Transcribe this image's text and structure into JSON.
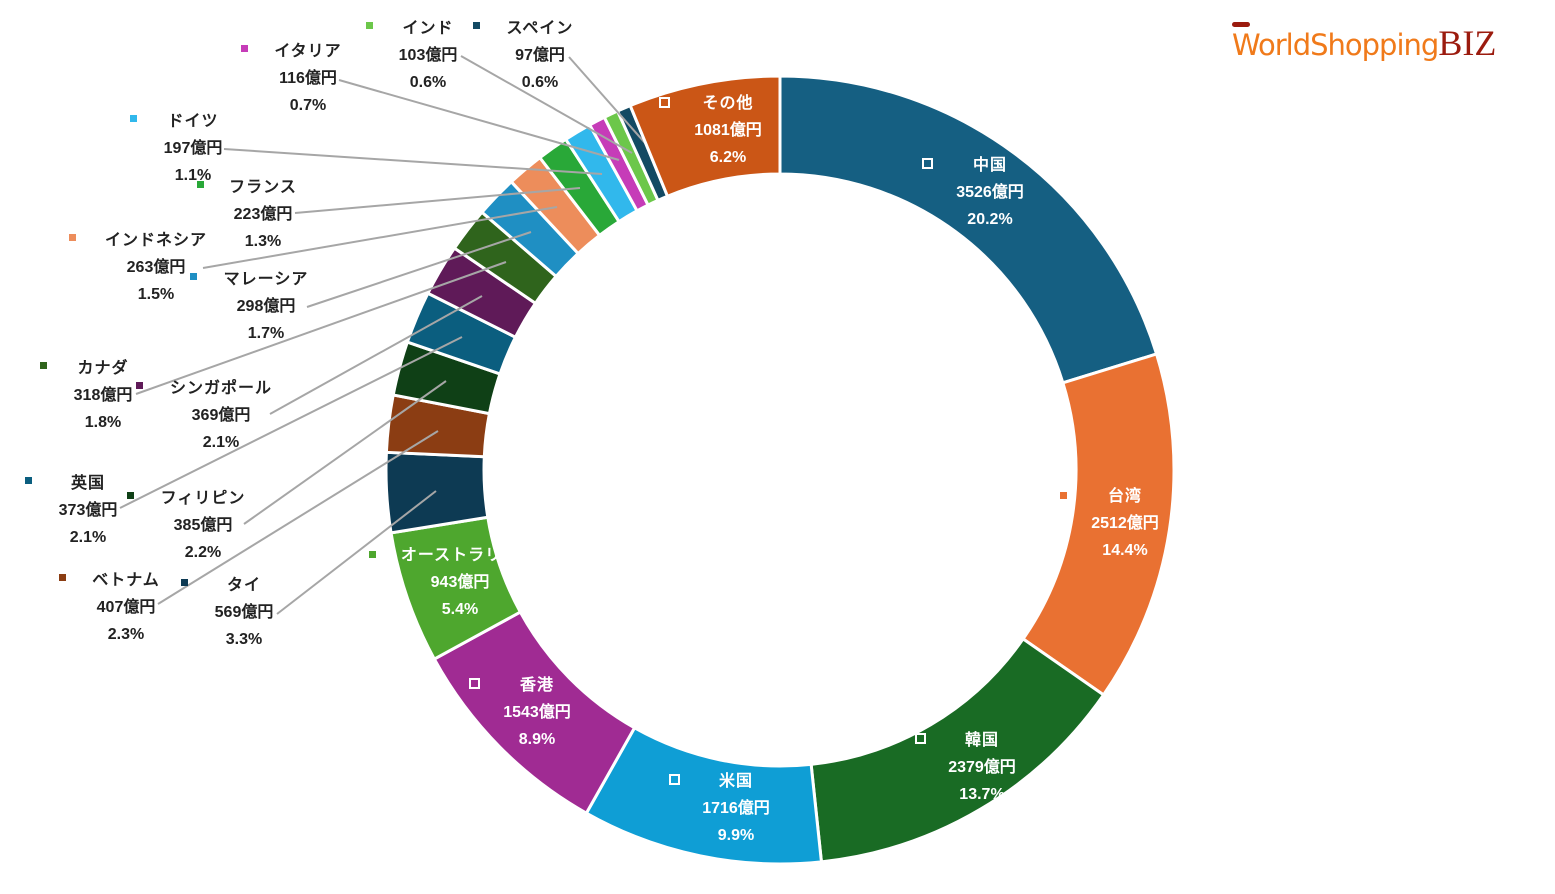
{
  "logo": {
    "part1": "WorldShopping",
    "part2": "BIZ"
  },
  "chart_data": {
    "type": "pie",
    "variant": "donut",
    "title": "",
    "unit": "億円",
    "slices": [
      {
        "name": "中国",
        "value": 3526,
        "value_label": "3526億円",
        "pct": "20.2%",
        "color": "#155f82"
      },
      {
        "name": "台湾",
        "value": 2512,
        "value_label": "2512億円",
        "pct": "14.4%",
        "color": "#e97132"
      },
      {
        "name": "韓国",
        "value": 2379,
        "value_label": "2379億円",
        "pct": "13.7%",
        "color": "#196b24"
      },
      {
        "name": "米国",
        "value": 1716,
        "value_label": "1716億円",
        "pct": "9.9%",
        "color": "#0f9ed5"
      },
      {
        "name": "香港",
        "value": 1543,
        "value_label": "1543億円",
        "pct": "8.9%",
        "color": "#a02b93"
      },
      {
        "name": "オーストラリア",
        "value": 943,
        "value_label": "943億円",
        "pct": "5.4%",
        "color": "#4ea72e"
      },
      {
        "name": "タイ",
        "value": 569,
        "value_label": "569億円",
        "pct": "3.3%",
        "color": "#0d3a53"
      },
      {
        "name": "ベトナム",
        "value": 407,
        "value_label": "407億円",
        "pct": "2.3%",
        "color": "#8b3d13"
      },
      {
        "name": "フィリピン",
        "value": 385,
        "value_label": "385億円",
        "pct": "2.2%",
        "color": "#0f4016"
      },
      {
        "name": "英国",
        "value": 373,
        "value_label": "373億円",
        "pct": "2.1%",
        "color": "#0b5e7f"
      },
      {
        "name": "シンガポール",
        "value": 369,
        "value_label": "369億円",
        "pct": "2.1%",
        "color": "#5f1a58"
      },
      {
        "name": "カナダ",
        "value": 318,
        "value_label": "318億円",
        "pct": "1.8%",
        "color": "#2f641c"
      },
      {
        "name": "マレーシア",
        "value": 298,
        "value_label": "298億円",
        "pct": "1.7%",
        "color": "#1f8fc3"
      },
      {
        "name": "インドネシア",
        "value": 263,
        "value_label": "263億円",
        "pct": "1.5%",
        "color": "#ed8d5b"
      },
      {
        "name": "フランス",
        "value": 223,
        "value_label": "223億円",
        "pct": "1.3%",
        "color": "#29a838"
      },
      {
        "name": "ドイツ",
        "value": 197,
        "value_label": "197億円",
        "pct": "1.1%",
        "color": "#31b8ec"
      },
      {
        "name": "イタリア",
        "value": 116,
        "value_label": "116億円",
        "pct": "0.7%",
        "color": "#c63cb8"
      },
      {
        "name": "インド",
        "value": 103,
        "value_label": "103億円",
        "pct": "0.6%",
        "color": "#6cc74a"
      },
      {
        "name": "スペイン",
        "value": 97,
        "value_label": "97億円",
        "pct": "0.6%",
        "color": "#134a63"
      },
      {
        "name": "その他",
        "value": 1081,
        "value_label": "1081億円",
        "pct": "6.2%",
        "color": "#cb5616"
      }
    ]
  }
}
